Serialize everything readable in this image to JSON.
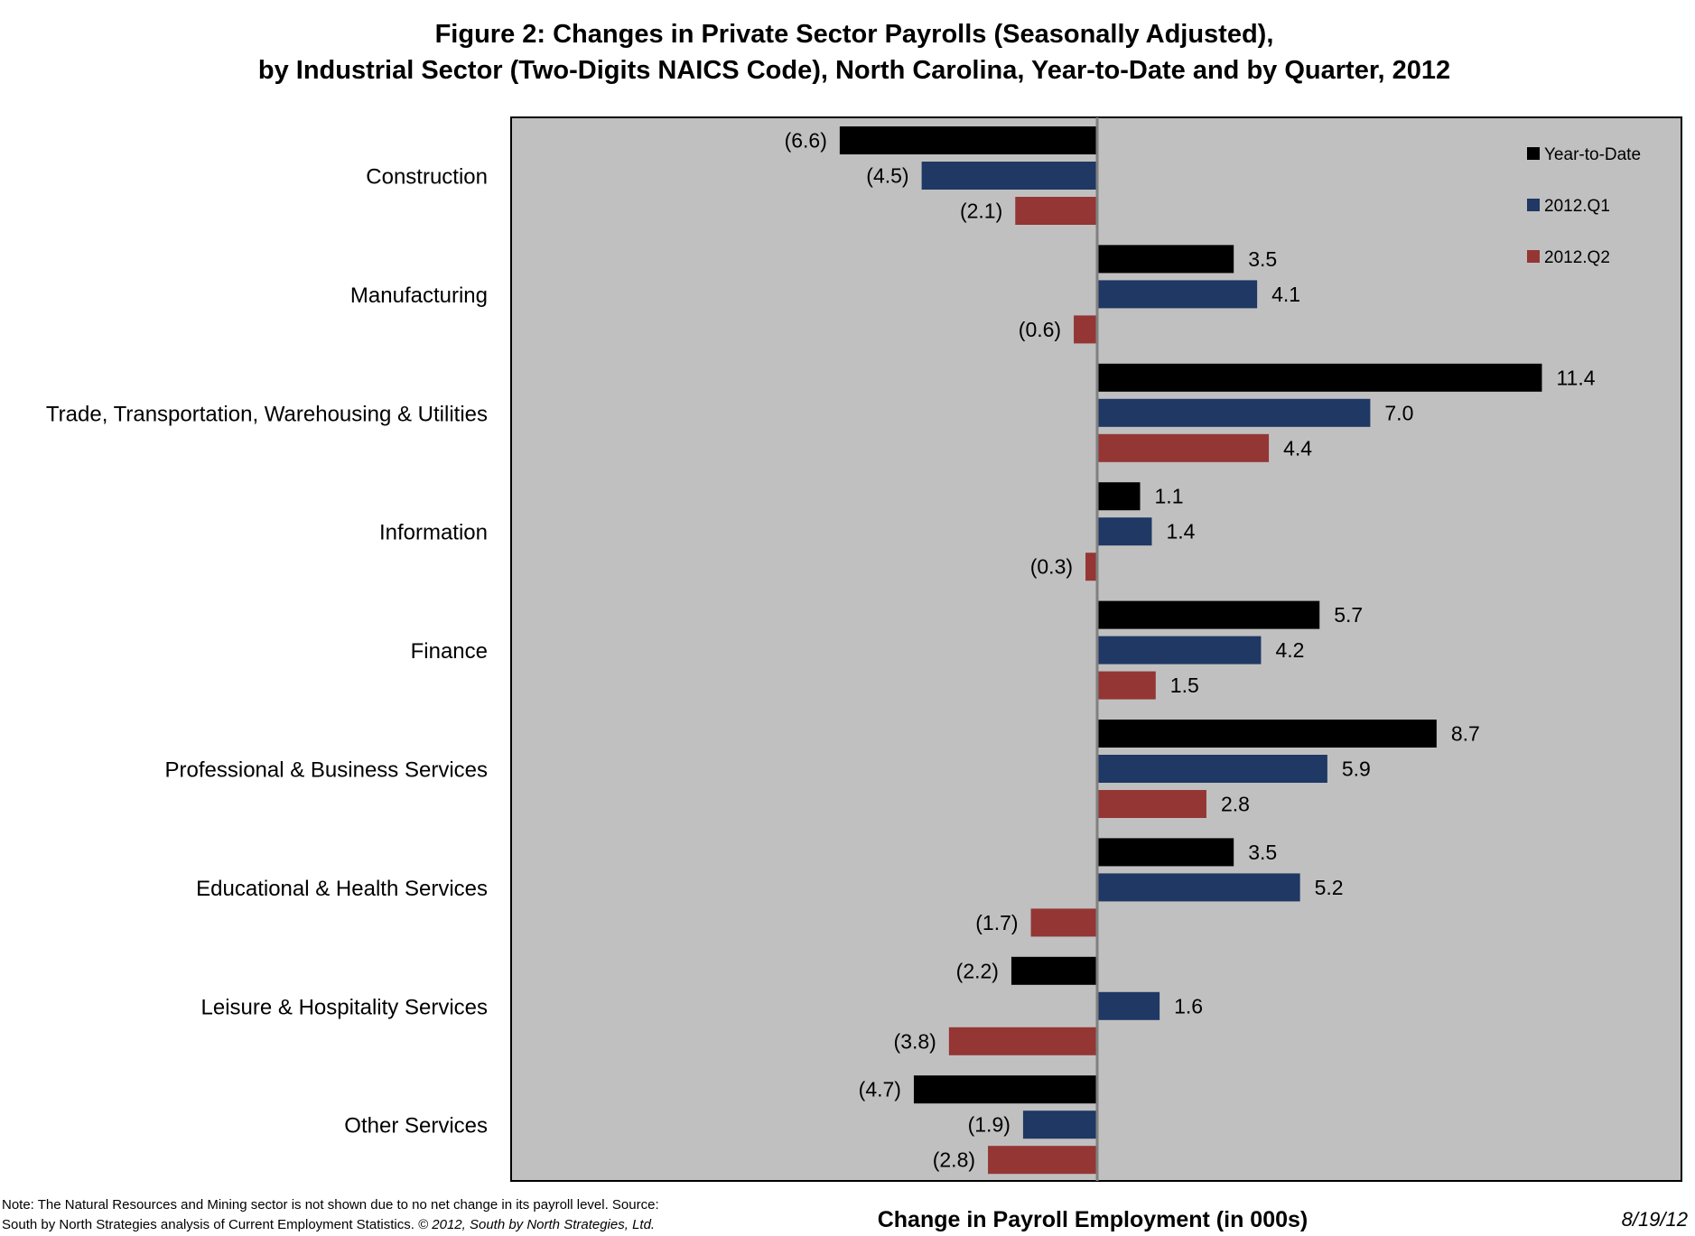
{
  "title_line1": "Figure 2: Changes in Private Sector Payrolls (Seasonally Adjusted),",
  "title_line2": "by Industrial Sector (Two-Digits NAICS Code), North Carolina, Year-to-Date and by Quarter, 2012",
  "note_line1": "Note: The Natural Resources and Mining sector is not shown due to no net change in its payroll level. Source:",
  "note_line2a": "South by North Strategies analysis of Current Employment Statistics.",
  "note_line2b": "© 2012, South by North Strategies, Ltd.",
  "date": "8/19/12",
  "colors": {
    "plot_bg": "#c0c0c0",
    "ytd": "#000000",
    "q1": "#1f3864",
    "q2": "#943634",
    "zero_line": "#808080"
  },
  "chart_data": {
    "type": "bar",
    "orientation": "horizontal",
    "xlabel": "Change in Payroll Employment (in 000s)",
    "legend_position": "top-right",
    "categories": [
      "Construction",
      "Manufacturing",
      "Trade, Transportation, Warehousing & Utilities",
      "Information",
      "Finance",
      "Professional & Business Services",
      "Educational & Health Services",
      "Leisure & Hospitality Services",
      "Other Services"
    ],
    "series": [
      {
        "name": "Year-to-Date",
        "color": "#000000",
        "values": [
          -6.6,
          3.5,
          11.4,
          1.1,
          5.7,
          8.7,
          3.5,
          -2.2,
          -4.7
        ]
      },
      {
        "name": "2012.Q1",
        "color": "#1f3864",
        "values": [
          -4.5,
          4.1,
          7.0,
          1.4,
          4.2,
          5.9,
          5.2,
          1.6,
          -1.9
        ]
      },
      {
        "name": "2012.Q2",
        "color": "#943634",
        "values": [
          -2.1,
          -0.6,
          4.4,
          -0.3,
          1.5,
          2.8,
          -1.7,
          -3.8,
          -2.8
        ]
      }
    ]
  }
}
